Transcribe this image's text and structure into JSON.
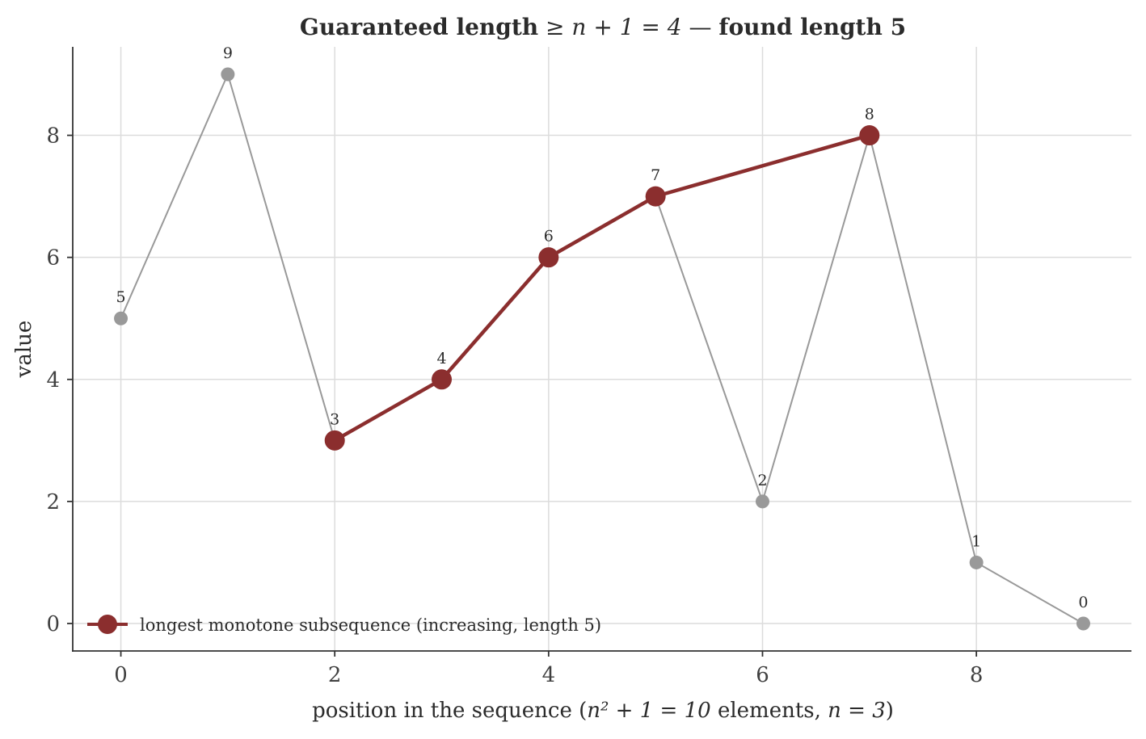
{
  "chart_data": {
    "type": "line",
    "title": {
      "prefix": "Guaranteed length",
      "math": "≥ n + 1 = 4",
      "dash": " — ",
      "suffix": "found length 5"
    },
    "xlabel": {
      "prefix": "position in the sequence (",
      "math1": "n² + 1 = 10",
      "middle": " elements, ",
      "math2": "n = 3",
      "suffix": ")"
    },
    "ylabel": "value",
    "xlim": [
      -0.45,
      9.45
    ],
    "ylim": [
      -0.45,
      9.45
    ],
    "xticks": [
      0,
      2,
      4,
      6,
      8
    ],
    "yticks": [
      0,
      2,
      4,
      6,
      8
    ],
    "grid": true,
    "legend_position": "lower-left",
    "series": [
      {
        "role": "sequence",
        "x": [
          0,
          1,
          2,
          3,
          4,
          5,
          6,
          7,
          8,
          9
        ],
        "y": [
          5,
          9,
          3,
          4,
          6,
          7,
          2,
          8,
          1,
          0
        ],
        "color": "#999999"
      },
      {
        "role": "subsequence",
        "name": "longest monotone subsequence (increasing, length 5)",
        "x": [
          2,
          3,
          4,
          5,
          7
        ],
        "y": [
          3,
          4,
          6,
          7,
          8
        ],
        "color": "#8b2e2e"
      }
    ],
    "data_labels": [
      "5",
      "9",
      "3",
      "4",
      "6",
      "7",
      "2",
      "8",
      "1",
      "0"
    ]
  }
}
